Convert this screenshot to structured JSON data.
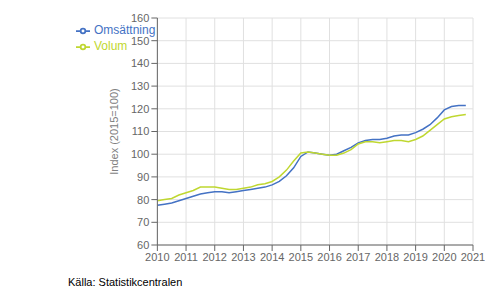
{
  "chart_data": {
    "type": "line",
    "ylabel": "Index (2015=100)",
    "annotation": "Källa: Statistikcentralen",
    "x": [
      2010.0,
      2010.25,
      2010.5,
      2010.75,
      2011.0,
      2011.25,
      2011.5,
      2011.75,
      2012.0,
      2012.25,
      2012.5,
      2012.75,
      2013.0,
      2013.25,
      2013.5,
      2013.75,
      2014.0,
      2014.25,
      2014.5,
      2014.75,
      2015.0,
      2015.25,
      2015.5,
      2015.75,
      2016.0,
      2016.25,
      2016.5,
      2016.75,
      2017.0,
      2017.25,
      2017.5,
      2017.75,
      2018.0,
      2018.25,
      2018.5,
      2018.75,
      2019.0,
      2019.25,
      2019.5,
      2019.75,
      2020.0,
      2020.25,
      2020.5,
      2020.75
    ],
    "series": [
      {
        "name": "Omsättning",
        "color": "#4472c4",
        "values": [
          77.5,
          78.0,
          78.5,
          79.5,
          80.5,
          81.5,
          82.5,
          83.0,
          83.5,
          83.5,
          83.0,
          83.5,
          84.0,
          84.5,
          85.0,
          85.5,
          86.5,
          88.0,
          90.5,
          94.0,
          99.0,
          101.0,
          100.5,
          100.0,
          99.5,
          100.0,
          101.5,
          103.0,
          105.0,
          106.0,
          106.5,
          106.5,
          107.0,
          108.0,
          108.5,
          108.5,
          109.5,
          111.0,
          113.0,
          116.0,
          119.5,
          121.0,
          121.5,
          121.5
        ]
      },
      {
        "name": "Volum",
        "color": "#bfd730",
        "values": [
          79.5,
          80.0,
          80.5,
          82.0,
          83.0,
          84.0,
          85.5,
          85.5,
          85.5,
          85.0,
          84.5,
          84.5,
          85.0,
          85.5,
          86.5,
          87.0,
          88.0,
          90.0,
          93.0,
          97.0,
          100.5,
          101.0,
          100.5,
          100.0,
          99.5,
          99.5,
          100.5,
          102.0,
          104.5,
          105.5,
          105.5,
          105.0,
          105.5,
          106.0,
          106.0,
          105.5,
          106.5,
          108.0,
          110.5,
          113.0,
          115.5,
          116.5,
          117.0,
          117.5
        ]
      }
    ],
    "xlim": [
      2010,
      2021
    ],
    "xticks": [
      2010,
      2011,
      2012,
      2013,
      2014,
      2015,
      2016,
      2017,
      2018,
      2019,
      2020,
      2021
    ],
    "ylim": [
      60,
      160
    ],
    "yticks": [
      60,
      70,
      80,
      90,
      100,
      110,
      120,
      130,
      140,
      150,
      160
    ],
    "grid": true,
    "legend": "upper left"
  }
}
